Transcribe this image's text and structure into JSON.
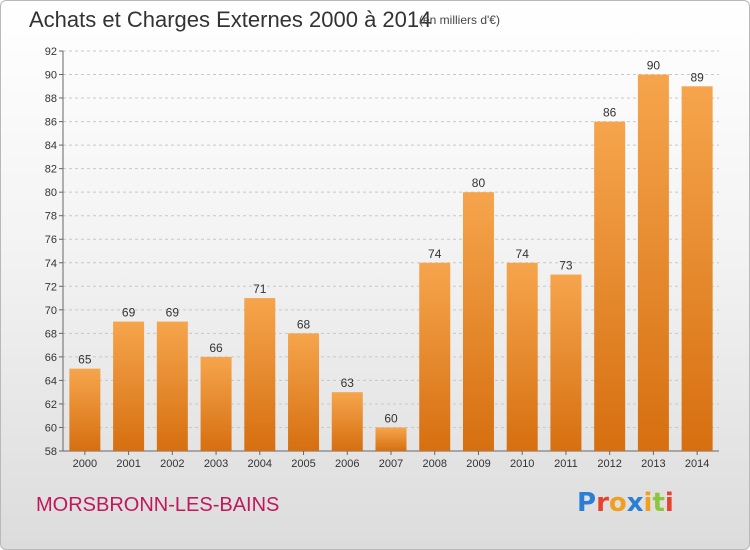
{
  "header": {
    "title": "Achats et Charges Externes 2000 à 2014",
    "subtitle": "(en milliers d'€)"
  },
  "footer": {
    "commune": "MORSBRONN-LES-BAINS",
    "logo": "Proxiti"
  },
  "colors": {
    "bar_light": "#f6a54d",
    "bar_dark": "#d66f10",
    "commune_text": "#c2185b",
    "logo_letters": [
      "#2a7fd4",
      "#e8412c",
      "#f0a020",
      "#2a7fd4",
      "#f0a020",
      "#8cc63f",
      "#e8412c"
    ]
  },
  "chart_data": {
    "type": "bar",
    "title": "Achats et Charges Externes 2000 à 2014",
    "subtitle": "(en milliers d'€)",
    "xlabel": "",
    "ylabel": "",
    "categories": [
      "2000",
      "2001",
      "2002",
      "2003",
      "2004",
      "2005",
      "2006",
      "2007",
      "2008",
      "2009",
      "2010",
      "2011",
      "2012",
      "2013",
      "2014"
    ],
    "values": [
      65,
      69,
      69,
      66,
      71,
      68,
      63,
      60,
      74,
      80,
      74,
      73,
      86,
      90,
      89
    ],
    "ylim": [
      58,
      92
    ],
    "yticks": [
      58,
      60,
      62,
      64,
      66,
      68,
      70,
      72,
      74,
      76,
      78,
      80,
      82,
      84,
      86,
      88,
      90,
      92
    ],
    "grid": "horizontal-dashed",
    "data_labels": true
  }
}
